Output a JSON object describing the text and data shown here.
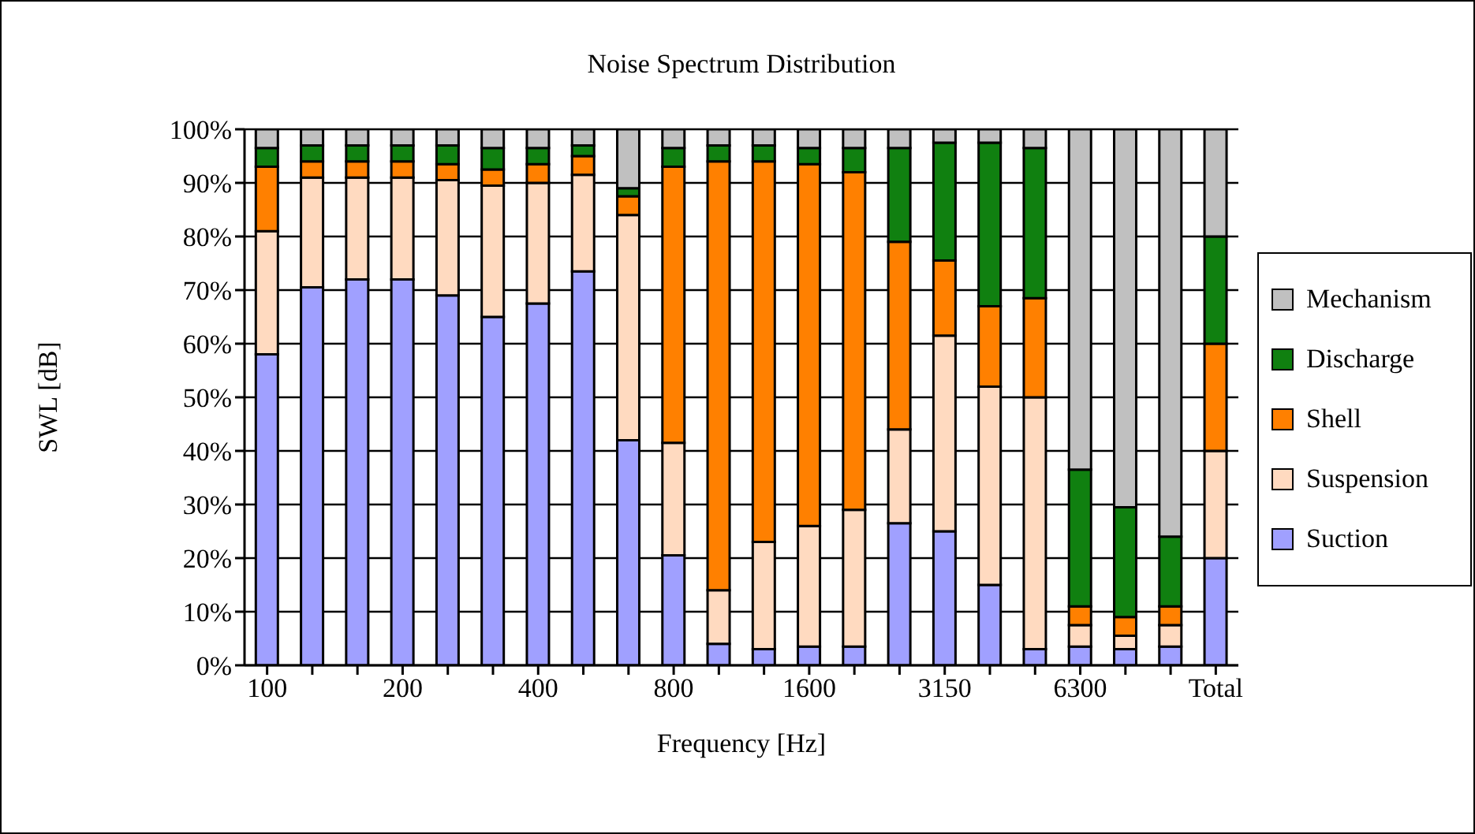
{
  "chart_data": {
    "type": "bar",
    "title": "Noise Spectrum Distribution",
    "xlabel": "Frequency [Hz]",
    "ylabel": "SWL [dB]",
    "categories": [
      "100",
      null,
      null,
      "200",
      null,
      null,
      "400",
      null,
      null,
      "800",
      null,
      null,
      "1600",
      null,
      null,
      "3150",
      null,
      null,
      "6300",
      null,
      null,
      "Total"
    ],
    "stacked": true,
    "grid": "y",
    "legend": "right",
    "ylim": [
      0,
      100
    ],
    "yticks": [
      {
        "value": 0,
        "label": "0%"
      },
      {
        "value": 10,
        "label": "10%"
      },
      {
        "value": 20,
        "label": "20%"
      },
      {
        "value": 30,
        "label": "30%"
      },
      {
        "value": 40,
        "label": "40%"
      },
      {
        "value": 50,
        "label": "50%"
      },
      {
        "value": 60,
        "label": "60%"
      },
      {
        "value": 70,
        "label": "70%"
      },
      {
        "value": 80,
        "label": "80%"
      },
      {
        "value": 90,
        "label": "90%"
      },
      {
        "value": 100,
        "label": "100%"
      }
    ],
    "series": [
      {
        "name": "Suction",
        "color": "#a0a0ff",
        "values": [
          58,
          70.5,
          72,
          72,
          69,
          65,
          67.5,
          73.5,
          42,
          20.5,
          4,
          3,
          3.5,
          3.5,
          26.5,
          25,
          15,
          3,
          3.5,
          3,
          3.5,
          20
        ]
      },
      {
        "name": "Suspension",
        "color": "#ffdac0",
        "values": [
          23,
          20.5,
          19,
          19,
          21.5,
          24.5,
          22.5,
          18,
          42,
          21,
          10,
          20,
          22.5,
          25.5,
          17.5,
          36.5,
          37,
          47,
          4,
          2.5,
          4,
          20
        ]
      },
      {
        "name": "Shell",
        "color": "#ff8000",
        "values": [
          12,
          3,
          3,
          3,
          3,
          3,
          3.5,
          3.5,
          3.5,
          51.5,
          80,
          71,
          67.5,
          63,
          35,
          14,
          15,
          18.5,
          3.5,
          3.5,
          3.5,
          20
        ]
      },
      {
        "name": "Discharge",
        "color": "#108010",
        "values": [
          3.5,
          3,
          3,
          3,
          3.5,
          4,
          3,
          2,
          1.5,
          3.5,
          3,
          3,
          3,
          4.5,
          17.5,
          22,
          30.5,
          28,
          25.5,
          20.5,
          13,
          20
        ]
      },
      {
        "name": "Mechanism",
        "color": "#c0c0c0",
        "values": [
          3.5,
          3,
          3,
          3,
          3,
          3.5,
          3.5,
          3,
          11,
          3.5,
          3,
          3,
          3.5,
          3.5,
          3.5,
          2.5,
          2.5,
          3.5,
          63.5,
          70.5,
          76,
          20
        ]
      }
    ]
  }
}
